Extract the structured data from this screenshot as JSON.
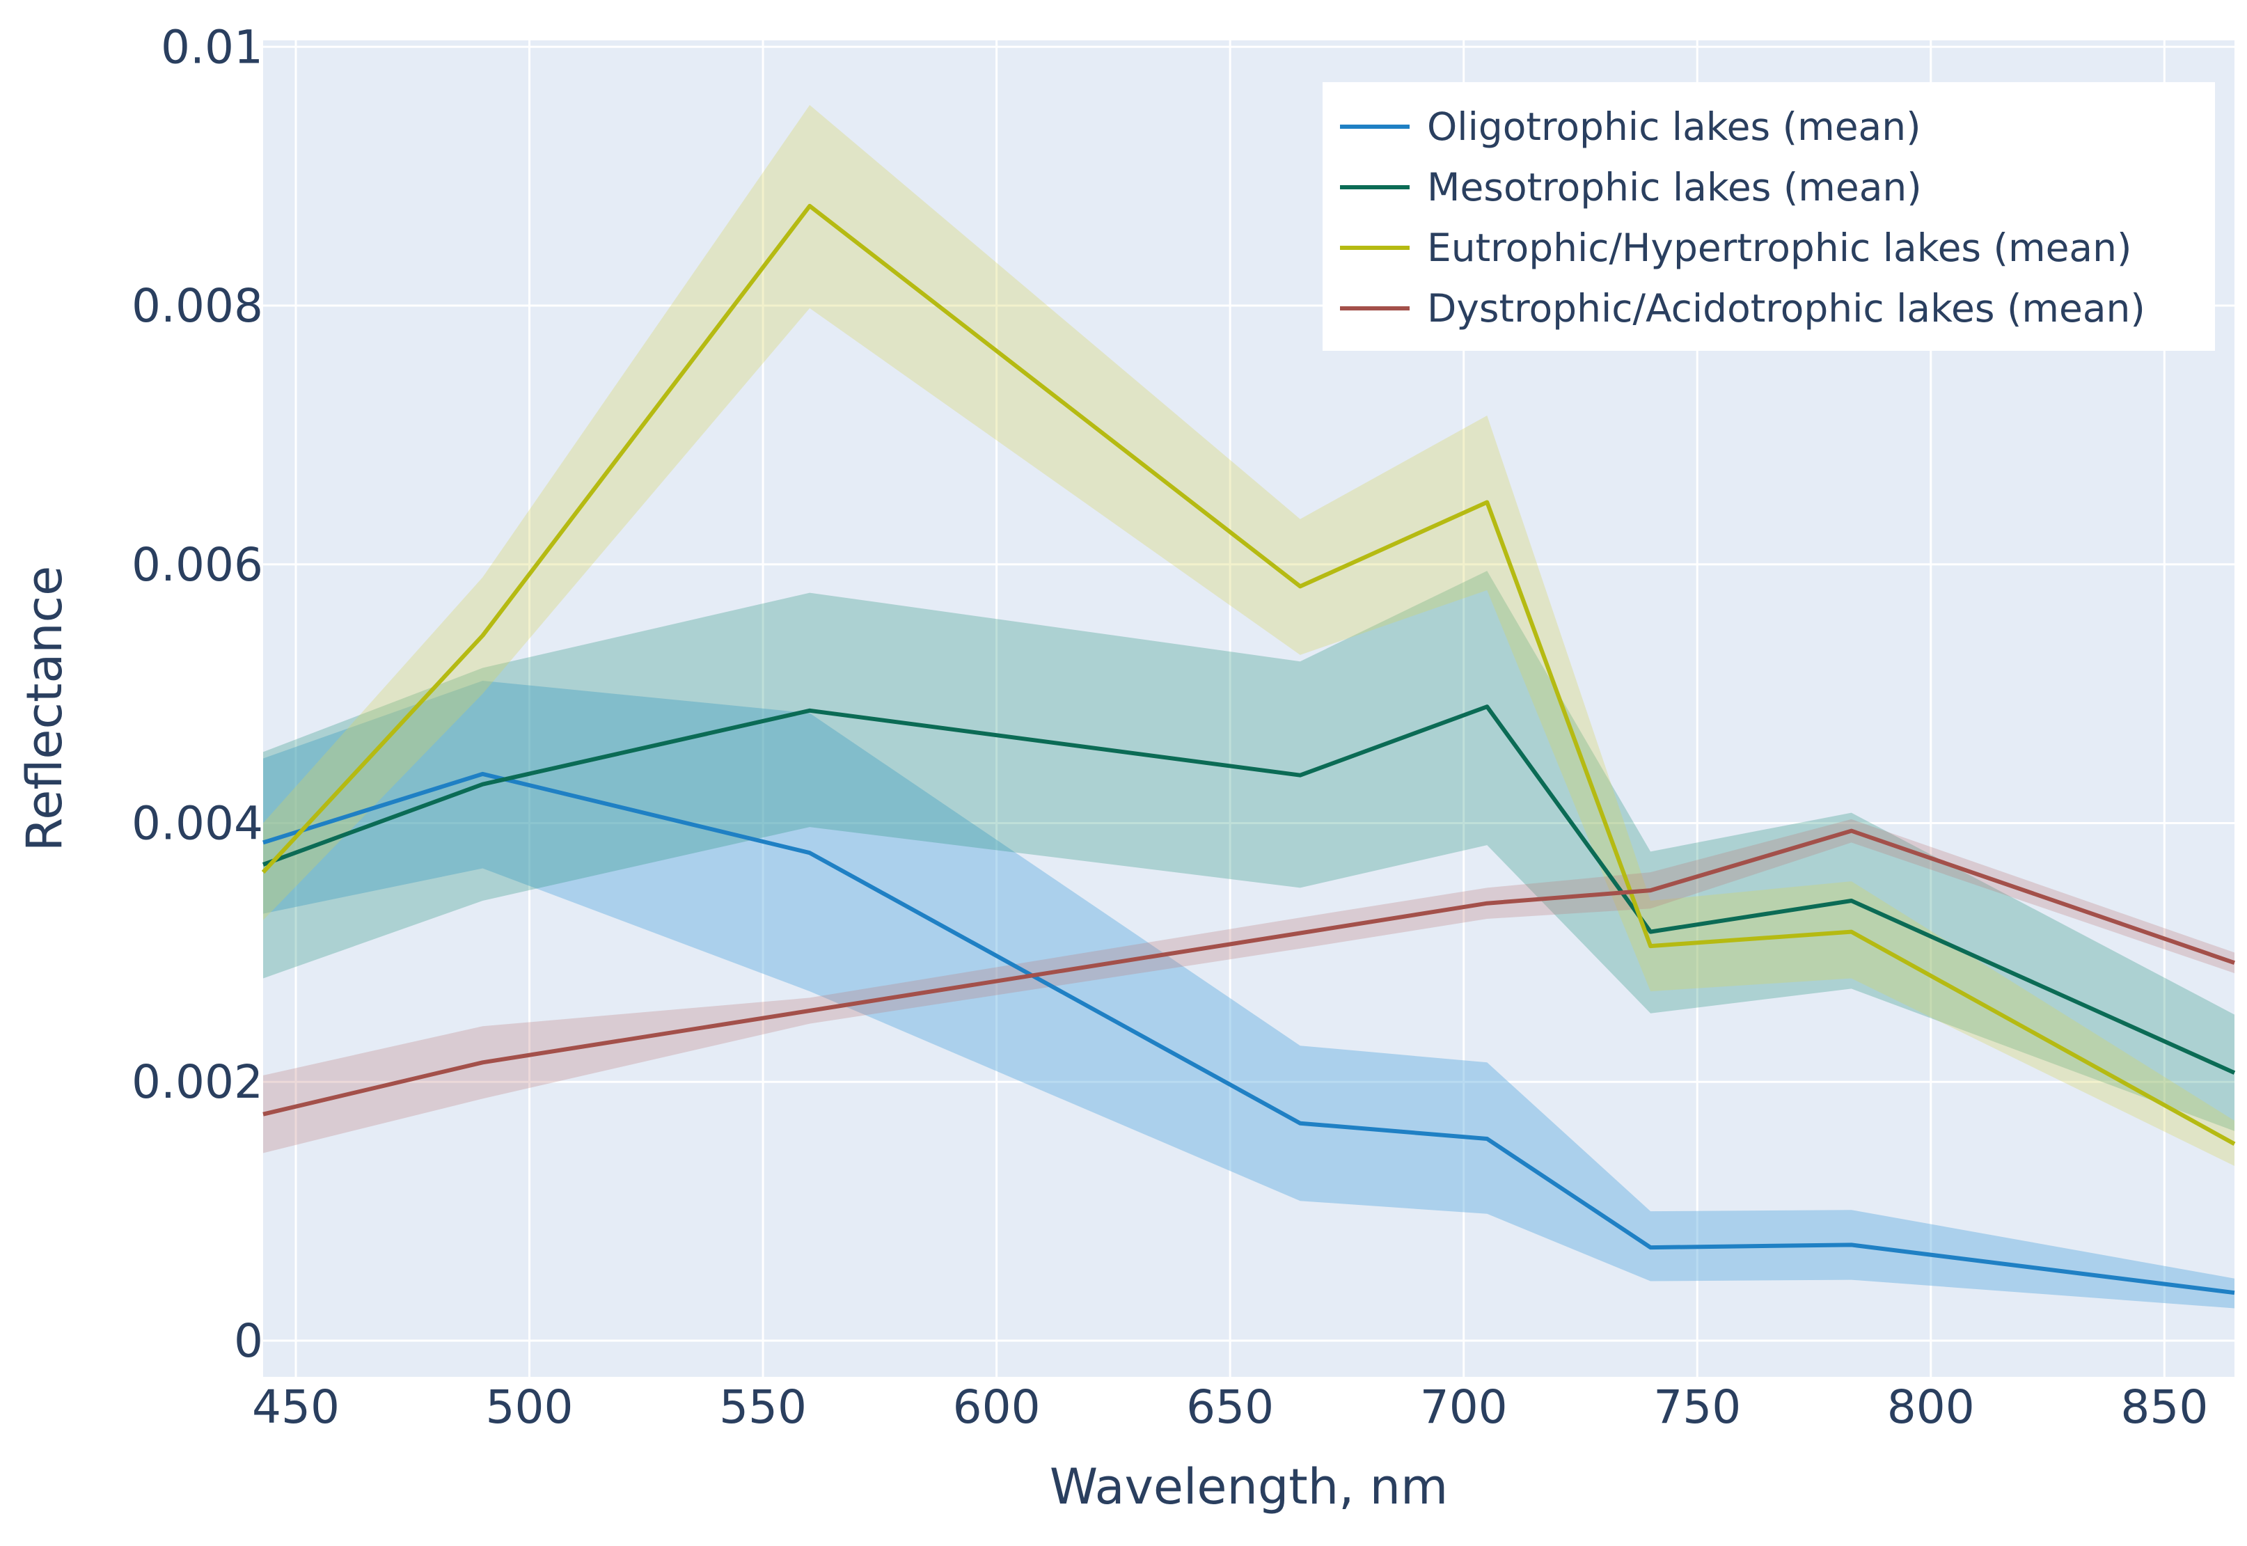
{
  "chart_data": {
    "type": "line",
    "xlabel": "Wavelength, nm",
    "ylabel": "Reflectance",
    "xlim": [
      443,
      865
    ],
    "ylim": [
      -0.00028,
      0.01005
    ],
    "grid": true,
    "legend_position": "top-right",
    "x_ticks": [
      {
        "value": 450,
        "label": "450"
      },
      {
        "value": 500,
        "label": "500"
      },
      {
        "value": 550,
        "label": "550"
      },
      {
        "value": 600,
        "label": "600"
      },
      {
        "value": 650,
        "label": "650"
      },
      {
        "value": 700,
        "label": "700"
      },
      {
        "value": 750,
        "label": "750"
      },
      {
        "value": 800,
        "label": "800"
      },
      {
        "value": 850,
        "label": "850"
      }
    ],
    "y_ticks": [
      {
        "value": 0,
        "label": "0"
      },
      {
        "value": 0.002,
        "label": "0.002"
      },
      {
        "value": 0.004,
        "label": "0.004"
      },
      {
        "value": 0.006,
        "label": "0.006"
      },
      {
        "value": 0.008,
        "label": "0.008"
      },
      {
        "value": 0.01,
        "label": "0.01"
      }
    ],
    "x": [
      443,
      490,
      560,
      665,
      705,
      740,
      783,
      865
    ],
    "series": [
      {
        "name": "Oligotrophic lakes (mean)",
        "color": "#1f80c4",
        "band_color": "rgba(100,175,225,0.45)",
        "mean": [
          0.00385,
          0.00438,
          0.00377,
          0.00168,
          0.00156,
          0.00072,
          0.00074,
          0.00037
        ],
        "upper": [
          0.0045,
          0.0051,
          0.00485,
          0.00228,
          0.00215,
          0.001,
          0.00101,
          0.00048
        ],
        "lower": [
          0.0033,
          0.00365,
          0.0027,
          0.00108,
          0.00098,
          0.00046,
          0.00047,
          0.00025
        ]
      },
      {
        "name": "Mesotrophic lakes (mean)",
        "color": "#0b6b55",
        "band_color": "rgba(25,140,120,0.28)",
        "mean": [
          0.00368,
          0.0043,
          0.00487,
          0.00437,
          0.0049,
          0.00316,
          0.0034,
          0.00207
        ],
        "upper": [
          0.00455,
          0.0052,
          0.00578,
          0.00525,
          0.00595,
          0.00378,
          0.00408,
          0.00252
        ],
        "lower": [
          0.0028,
          0.0034,
          0.00397,
          0.0035,
          0.00383,
          0.00253,
          0.00272,
          0.00162
        ]
      },
      {
        "name": "Eutrophic/Hypertrophic lakes (mean)",
        "color": "#b5ba12",
        "band_color": "rgba(215,210,95,0.32)",
        "mean": [
          0.00362,
          0.00545,
          0.00877,
          0.00583,
          0.00648,
          0.00305,
          0.00316,
          0.00152
        ],
        "upper": [
          0.004,
          0.0059,
          0.00955,
          0.00635,
          0.00715,
          0.0034,
          0.00355,
          0.0017
        ],
        "lower": [
          0.00325,
          0.005,
          0.00798,
          0.0053,
          0.0058,
          0.0027,
          0.0028,
          0.00135
        ]
      },
      {
        "name": "Dystrophic/Acidotrophic lakes (mean)",
        "color": "#a3504a",
        "band_color": "rgba(185,120,120,0.28)",
        "mean": [
          0.00175,
          0.00215,
          0.00255,
          0.00315,
          0.00338,
          0.00348,
          0.00394,
          0.00292
        ],
        "upper": [
          0.00205,
          0.00243,
          0.00265,
          0.00327,
          0.0035,
          0.00362,
          0.00403,
          0.003
        ],
        "lower": [
          0.00145,
          0.00187,
          0.00245,
          0.00303,
          0.00326,
          0.00334,
          0.00385,
          0.00284
        ]
      }
    ]
  }
}
